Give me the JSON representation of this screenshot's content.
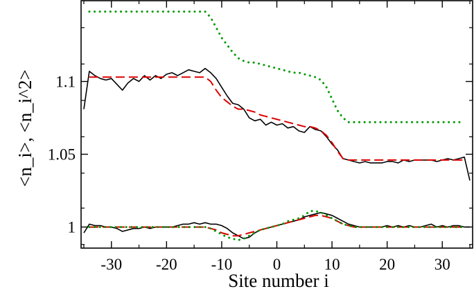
{
  "chart_data": {
    "type": "line",
    "title": "",
    "xlabel": "Site number  i",
    "ylabel": "<n_i>,  <n_i^2>",
    "xlim": [
      -35.5,
      35.5
    ],
    "ylim": [
      0.9855,
      1.1555
    ],
    "x_ticks": [
      -30,
      -20,
      -10,
      0,
      10,
      20,
      30
    ],
    "x_tick_labels": [
      "-30",
      "-20",
      "-10",
      "0",
      "10",
      "20",
      "30"
    ],
    "y_ticks": [
      1.0,
      1.05,
      1.1
    ],
    "y_tick_labels": [
      "1",
      "1.05",
      "1.1"
    ],
    "grid": false,
    "legend": "none",
    "series": [
      {
        "style": "solid",
        "color": "#000000",
        "points": [
          [
            -35,
            1.081
          ],
          [
            -34,
            1.107
          ],
          [
            -33,
            1.104
          ],
          [
            -32,
            1.102
          ],
          [
            -31,
            1.101
          ],
          [
            -30,
            1.102
          ],
          [
            -29,
            1.098
          ],
          [
            -28,
            1.094
          ],
          [
            -27,
            1.099
          ],
          [
            -26,
            1.102
          ],
          [
            -25,
            1.1
          ],
          [
            -24,
            1.104
          ],
          [
            -23,
            1.101
          ],
          [
            -22,
            1.104
          ],
          [
            -21,
            1.102
          ],
          [
            -20,
            1.105
          ],
          [
            -19,
            1.106
          ],
          [
            -18,
            1.104
          ],
          [
            -17,
            1.106
          ],
          [
            -16,
            1.108
          ],
          [
            -15,
            1.107
          ],
          [
            -14,
            1.106
          ],
          [
            -13,
            1.109
          ],
          [
            -12,
            1.106
          ],
          [
            -11,
            1.102
          ],
          [
            -10,
            1.096
          ],
          [
            -9,
            1.09
          ],
          [
            -8,
            1.085
          ],
          [
            -7,
            1.084
          ],
          [
            -6,
            1.081
          ],
          [
            -5,
            1.075
          ],
          [
            -4,
            1.073
          ],
          [
            -3,
            1.074
          ],
          [
            -2,
            1.07
          ],
          [
            -1,
            1.072
          ],
          [
            0,
            1.07
          ],
          [
            1,
            1.071
          ],
          [
            2,
            1.068
          ],
          [
            3,
            1.069
          ],
          [
            4,
            1.066
          ],
          [
            5,
            1.065
          ],
          [
            6,
            1.069
          ],
          [
            7,
            1.067
          ],
          [
            8,
            1.066
          ],
          [
            9,
            1.062
          ],
          [
            10,
            1.057
          ],
          [
            11,
            1.053
          ],
          [
            12,
            1.047
          ],
          [
            13,
            1.046
          ],
          [
            14,
            1.045
          ],
          [
            15,
            1.044
          ],
          [
            16,
            1.045
          ],
          [
            17,
            1.044
          ],
          [
            18,
            1.044
          ],
          [
            19,
            1.044
          ],
          [
            20,
            1.045
          ],
          [
            21,
            1.045
          ],
          [
            22,
            1.044
          ],
          [
            23,
            1.046
          ],
          [
            24,
            1.045
          ],
          [
            25,
            1.046
          ],
          [
            26,
            1.046
          ],
          [
            27,
            1.046
          ],
          [
            28,
            1.046
          ],
          [
            29,
            1.045
          ],
          [
            30,
            1.046
          ],
          [
            31,
            1.047
          ],
          [
            32,
            1.046
          ],
          [
            33,
            1.047
          ],
          [
            34,
            1.048
          ],
          [
            35,
            1.032
          ]
        ]
      },
      {
        "style": "dashed",
        "color": "#dd0000",
        "points": [
          [
            -34,
            1.103
          ],
          [
            -13,
            1.103
          ],
          [
            -12,
            1.1
          ],
          [
            -11,
            1.094
          ],
          [
            -10,
            1.089
          ],
          [
            -9,
            1.086
          ],
          [
            -8,
            1.083
          ],
          [
            -7,
            1.081
          ],
          [
            -6,
            1.081
          ],
          [
            -5,
            1.08
          ],
          [
            -4,
            1.079
          ],
          [
            -3,
            1.077
          ],
          [
            -2,
            1.076
          ],
          [
            -1,
            1.075
          ],
          [
            0,
            1.074
          ],
          [
            1,
            1.073
          ],
          [
            2,
            1.072
          ],
          [
            3,
            1.071
          ],
          [
            4,
            1.07
          ],
          [
            5,
            1.069
          ],
          [
            6,
            1.069
          ],
          [
            7,
            1.068
          ],
          [
            8,
            1.066
          ],
          [
            9,
            1.063
          ],
          [
            10,
            1.058
          ],
          [
            11,
            1.052
          ],
          [
            12,
            1.047
          ],
          [
            13,
            1.046
          ],
          [
            14,
            1.046
          ],
          [
            34,
            1.046
          ]
        ]
      },
      {
        "style": "dotted",
        "color": "#009900",
        "points": [
          [
            -34,
            1.148
          ],
          [
            -13,
            1.148
          ],
          [
            -12,
            1.144
          ],
          [
            -11,
            1.137
          ],
          [
            -10,
            1.13
          ],
          [
            -9,
            1.125
          ],
          [
            -8,
            1.12
          ],
          [
            -7,
            1.116
          ],
          [
            -6,
            1.114
          ],
          [
            -5,
            1.113
          ],
          [
            -4,
            1.113
          ],
          [
            -3,
            1.112
          ],
          [
            -2,
            1.111
          ],
          [
            -1,
            1.11
          ],
          [
            0,
            1.109
          ],
          [
            1,
            1.108
          ],
          [
            2,
            1.107
          ],
          [
            3,
            1.106
          ],
          [
            4,
            1.106
          ],
          [
            5,
            1.105
          ],
          [
            6,
            1.104
          ],
          [
            7,
            1.103
          ],
          [
            8,
            1.101
          ],
          [
            9,
            1.096
          ],
          [
            10,
            1.088
          ],
          [
            11,
            1.08
          ],
          [
            12,
            1.075
          ],
          [
            13,
            1.072
          ],
          [
            34,
            1.072
          ]
        ]
      },
      {
        "style": "solid",
        "color": "#000000",
        "points": [
          [
            -35,
            0.996
          ],
          [
            -34,
            1.002
          ],
          [
            -33,
            1.001
          ],
          [
            -32,
            1.001
          ],
          [
            -31,
            1.0
          ],
          [
            -30,
            1.0
          ],
          [
            -29,
            0.999
          ],
          [
            -28,
            0.997
          ],
          [
            -27,
            0.998
          ],
          [
            -26,
            0.999
          ],
          [
            -25,
            0.999
          ],
          [
            -24,
            1.0
          ],
          [
            -23,
            0.999
          ],
          [
            -22,
            1.0
          ],
          [
            -21,
            1.0
          ],
          [
            -20,
            1.0
          ],
          [
            -19,
            1.0
          ],
          [
            -18,
            1.001
          ],
          [
            -17,
            1.002
          ],
          [
            -16,
            1.002
          ],
          [
            -15,
            1.003
          ],
          [
            -14,
            1.002
          ],
          [
            -13,
            1.003
          ],
          [
            -12,
            1.002
          ],
          [
            -11,
            1.002
          ],
          [
            -10,
            1.001
          ],
          [
            -9,
            0.999
          ],
          [
            -8,
            0.996
          ],
          [
            -7,
            0.994
          ],
          [
            -6,
            0.992
          ],
          [
            -5,
            0.993
          ],
          [
            -4,
            0.996
          ],
          [
            -3,
            0.998
          ],
          [
            -2,
            0.999
          ],
          [
            -1,
            1.0
          ],
          [
            0,
            1.001
          ],
          [
            1,
            1.002
          ],
          [
            2,
            1.003
          ],
          [
            3,
            1.004
          ],
          [
            4,
            1.005
          ],
          [
            5,
            1.007
          ],
          [
            6,
            1.008
          ],
          [
            7,
            1.009
          ],
          [
            8,
            1.01
          ],
          [
            9,
            1.009
          ],
          [
            10,
            1.008
          ],
          [
            11,
            1.006
          ],
          [
            12,
            1.004
          ],
          [
            13,
            1.002
          ],
          [
            14,
            1.001
          ],
          [
            15,
            1.0
          ],
          [
            16,
            1.0
          ],
          [
            17,
            1.0
          ],
          [
            18,
            1.0
          ],
          [
            19,
            1.0
          ],
          [
            20,
            1.001
          ],
          [
            21,
            1.0
          ],
          [
            22,
            1.001
          ],
          [
            23,
            1.0
          ],
          [
            24,
            1.001
          ],
          [
            25,
            1.0
          ],
          [
            26,
            1.0
          ],
          [
            27,
            1.001
          ],
          [
            28,
            1.002
          ],
          [
            29,
            1.0
          ],
          [
            30,
            1.001
          ],
          [
            31,
            1.0
          ],
          [
            32,
            1.001
          ],
          [
            33,
            1.001
          ],
          [
            34,
            1.0
          ],
          [
            35,
            1.0
          ]
        ]
      },
      {
        "style": "dashed",
        "color": "#dd0000",
        "points": [
          [
            -34,
            1.0
          ],
          [
            -13,
            1.0
          ],
          [
            -12,
            0.999
          ],
          [
            -11,
            0.998
          ],
          [
            -10,
            0.996
          ],
          [
            -9,
            0.995
          ],
          [
            -8,
            0.994
          ],
          [
            -7,
            0.994
          ],
          [
            -6,
            0.995
          ],
          [
            -5,
            0.996
          ],
          [
            -4,
            0.997
          ],
          [
            -3,
            0.998
          ],
          [
            -2,
            0.999
          ],
          [
            -1,
            1.0
          ],
          [
            0,
            1.001
          ],
          [
            1,
            1.002
          ],
          [
            2,
            1.003
          ],
          [
            3,
            1.004
          ],
          [
            4,
            1.005
          ],
          [
            5,
            1.006
          ],
          [
            6,
            1.007
          ],
          [
            7,
            1.008
          ],
          [
            8,
            1.008
          ],
          [
            9,
            1.007
          ],
          [
            10,
            1.006
          ],
          [
            11,
            1.004
          ],
          [
            12,
            1.002
          ],
          [
            13,
            1.001
          ],
          [
            14,
            1.0
          ],
          [
            34,
            1.0
          ]
        ]
      },
      {
        "style": "dotted",
        "color": "#009900",
        "points": [
          [
            -34,
            1.0
          ],
          [
            -13,
            1.0
          ],
          [
            -12,
            0.999
          ],
          [
            -11,
            0.997
          ],
          [
            -10,
            0.995
          ],
          [
            -9,
            0.993
          ],
          [
            -8,
            0.992
          ],
          [
            -7,
            0.991
          ],
          [
            -6,
            0.992
          ],
          [
            -5,
            0.994
          ],
          [
            -4,
            0.996
          ],
          [
            -3,
            0.998
          ],
          [
            -2,
            0.999
          ],
          [
            -1,
            1.0
          ],
          [
            0,
            1.001
          ],
          [
            1,
            1.002
          ],
          [
            2,
            1.004
          ],
          [
            3,
            1.005
          ],
          [
            4,
            1.006
          ],
          [
            5,
            1.008
          ],
          [
            6,
            1.011
          ],
          [
            7,
            1.011
          ],
          [
            8,
            1.01
          ],
          [
            9,
            1.008
          ],
          [
            10,
            1.006
          ],
          [
            11,
            1.004
          ],
          [
            12,
            1.002
          ],
          [
            13,
            1.001
          ],
          [
            14,
            1.0
          ],
          [
            34,
            1.0
          ]
        ]
      }
    ]
  }
}
